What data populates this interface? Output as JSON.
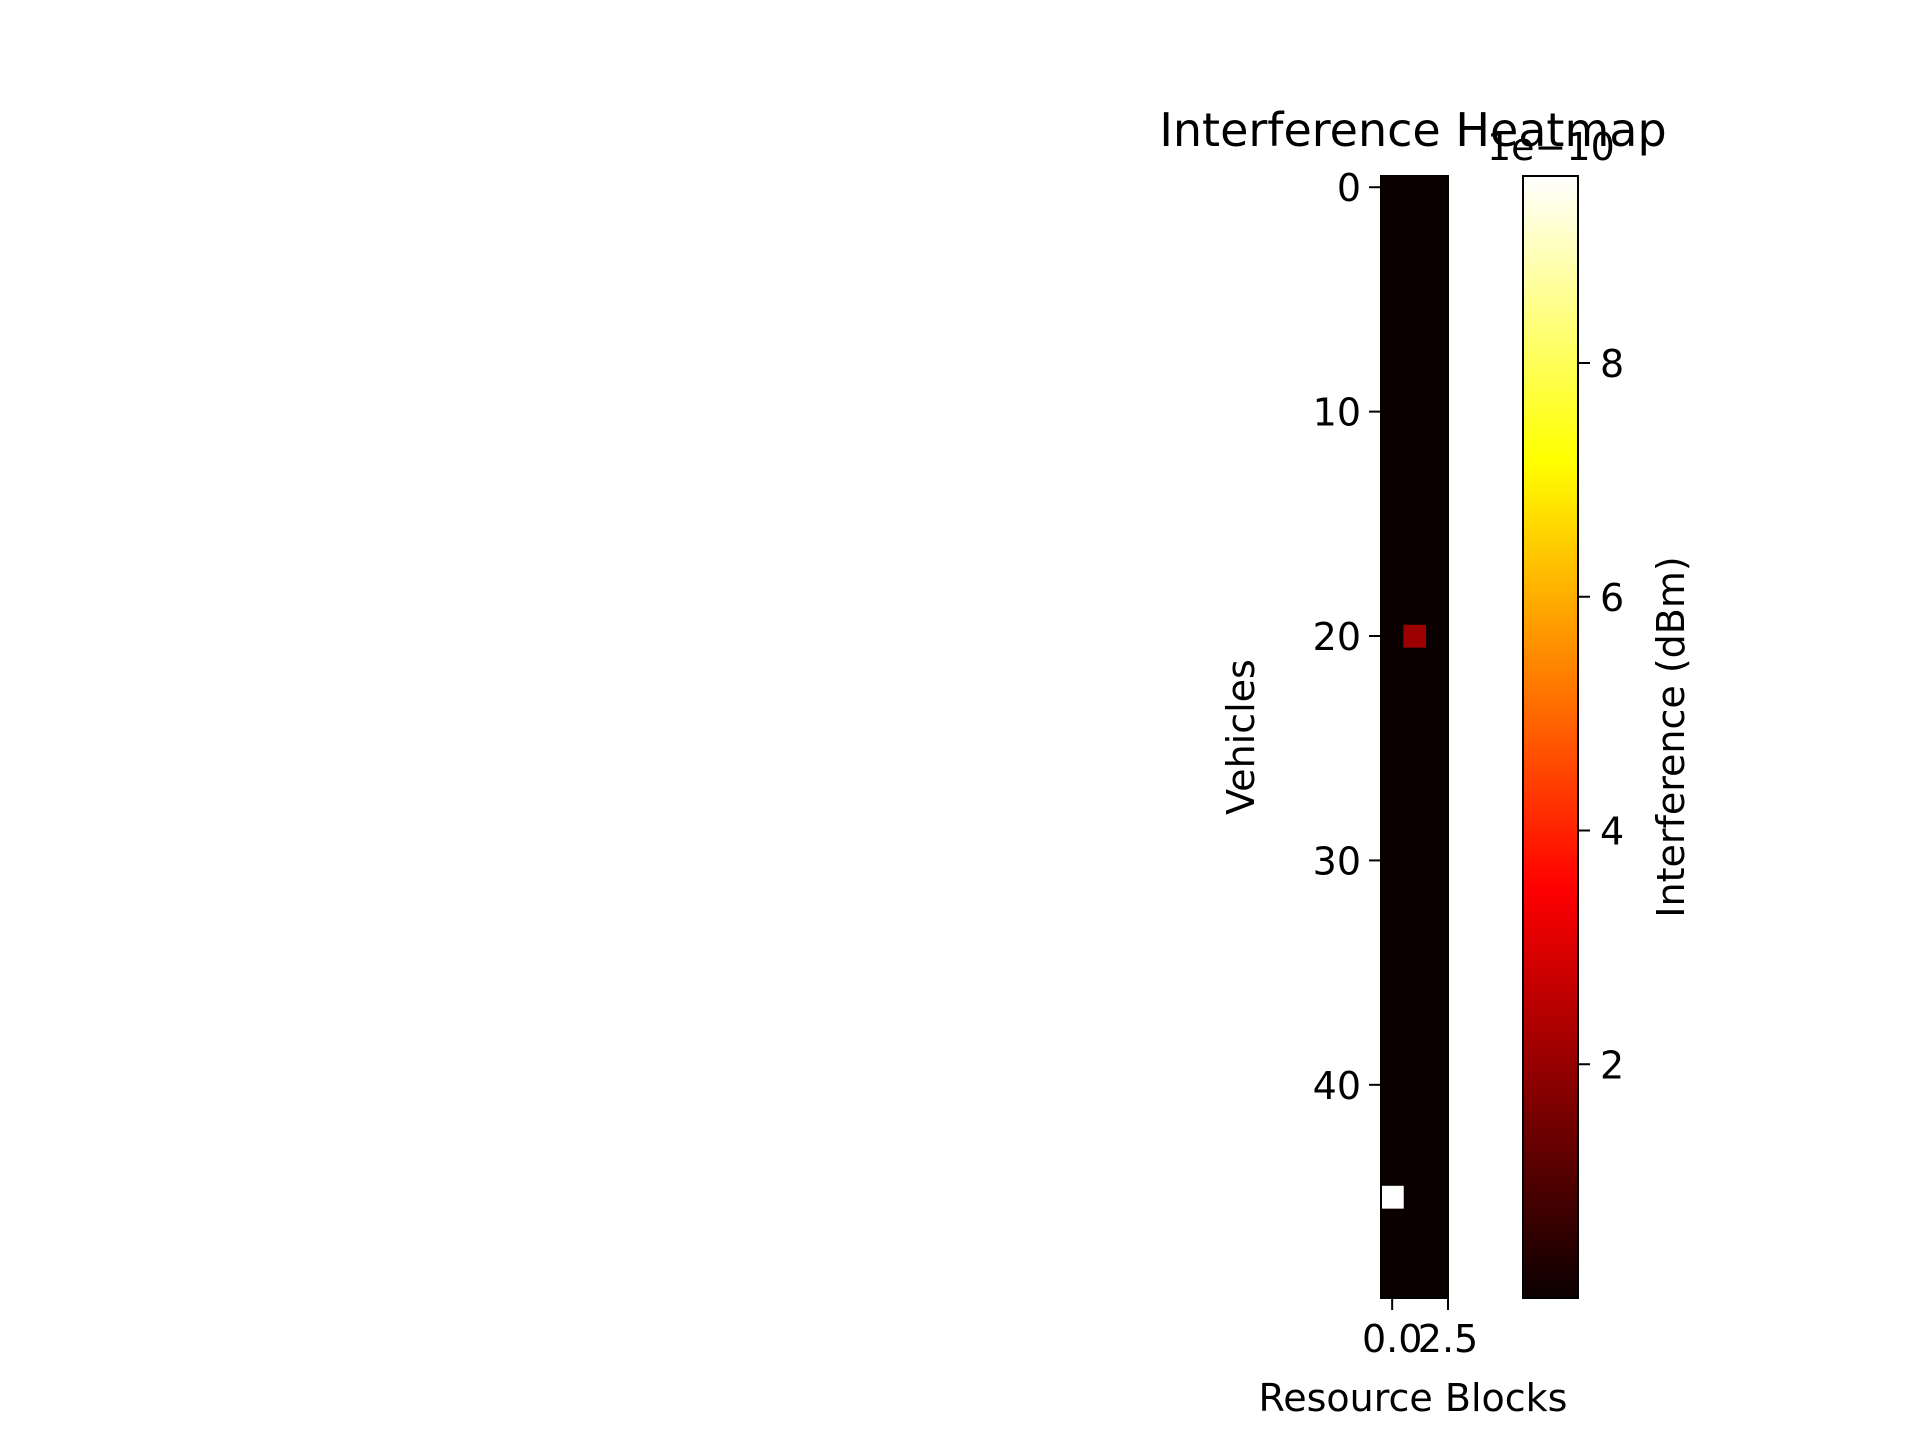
{
  "chart_data": {
    "type": "heatmap",
    "title": "Interference Heatmap",
    "xlabel": "Resource Blocks",
    "ylabel": "Vehicles",
    "rows": 50,
    "cols": 3,
    "x_ticks": [
      "0.0",
      "2.5"
    ],
    "x_tick_values": [
      0,
      2.5
    ],
    "y_ticks": [
      "0",
      "10",
      "20",
      "30",
      "40"
    ],
    "y_tick_values": [
      0,
      10,
      20,
      30,
      40
    ],
    "background_value": 0,
    "nonzero_cells": [
      {
        "row": 20,
        "col": 1,
        "value": 2e-10
      },
      {
        "row": 45,
        "col": 0,
        "value": 9.6e-10
      }
    ],
    "colormap": "hot",
    "colorbar": {
      "label": "Interference (dBm)",
      "offset_text": "1e−10",
      "min": 0,
      "max": 9.6,
      "ticks": [
        "2",
        "4",
        "6",
        "8"
      ],
      "tick_values": [
        2,
        4,
        6,
        8
      ],
      "scale": 1e-10
    },
    "grid": false
  }
}
